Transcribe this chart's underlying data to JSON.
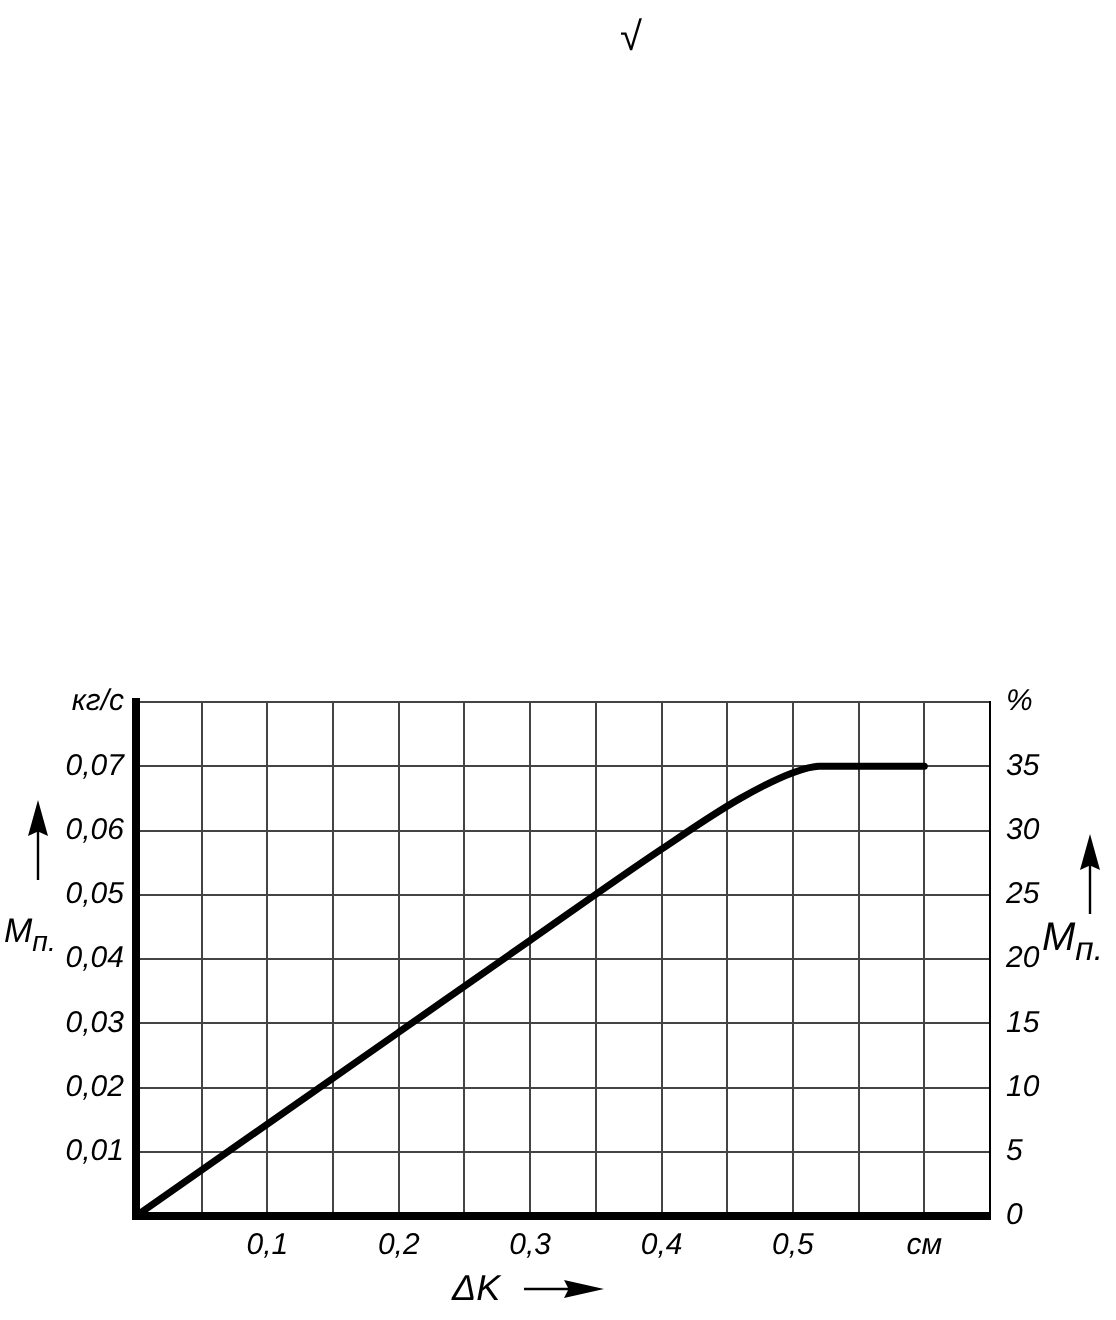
{
  "chart_data": {
    "type": "line",
    "xlabel": "ΔK",
    "ylabel": "M$_{п.}$",
    "y2label": "M$_{п.}$",
    "annotations": [
      "√"
    ],
    "x": [
      0,
      0.1,
      0.2,
      0.3,
      0.4,
      0.46,
      0.5,
      0.52,
      0.6
    ],
    "series": [
      {
        "color": "#000000",
        "values": [
          0,
          0.0143,
          0.0286,
          0.0429,
          0.0571,
          0.065,
          0.069,
          0.07,
          0.07
        ]
      }
    ],
    "xlim": [
      0,
      0.65
    ],
    "xticks": [
      {
        "value": 0,
        "label": null
      },
      {
        "value": 0.05,
        "label": null
      },
      {
        "value": 0.1,
        "label": "0,1"
      },
      {
        "value": 0.15,
        "label": null
      },
      {
        "value": 0.2,
        "label": "0,2"
      },
      {
        "value": 0.25,
        "label": null
      },
      {
        "value": 0.3,
        "label": "0,3"
      },
      {
        "value": 0.35,
        "label": null
      },
      {
        "value": 0.4,
        "label": "0,4"
      },
      {
        "value": 0.45,
        "label": null
      },
      {
        "value": 0.5,
        "label": "0,5"
      },
      {
        "value": 0.55,
        "label": null
      },
      {
        "value": 0.6,
        "label": "см"
      },
      {
        "value": 0.65,
        "label": null
      }
    ],
    "ylim": [
      0,
      0.08
    ],
    "yticks": [
      {
        "value": 0,
        "label": null
      },
      {
        "value": 0.01,
        "label": "0,01"
      },
      {
        "value": 0.02,
        "label": "0,02"
      },
      {
        "value": 0.03,
        "label": "0,03"
      },
      {
        "value": 0.04,
        "label": "0,04"
      },
      {
        "value": 0.05,
        "label": "0,05"
      },
      {
        "value": 0.06,
        "label": "0,06"
      },
      {
        "value": 0.07,
        "label": "0,07"
      },
      {
        "value": 0.08,
        "label": "кг/с"
      }
    ],
    "y2lim": [
      0,
      40
    ],
    "y2ticks": [
      0,
      5,
      10,
      15,
      20,
      25,
      30,
      35,
      {
        "value": 40,
        "label": "%"
      }
    ],
    "grid": true,
    "legend": false,
    "marker": "none",
    "line_style": "solid"
  }
}
